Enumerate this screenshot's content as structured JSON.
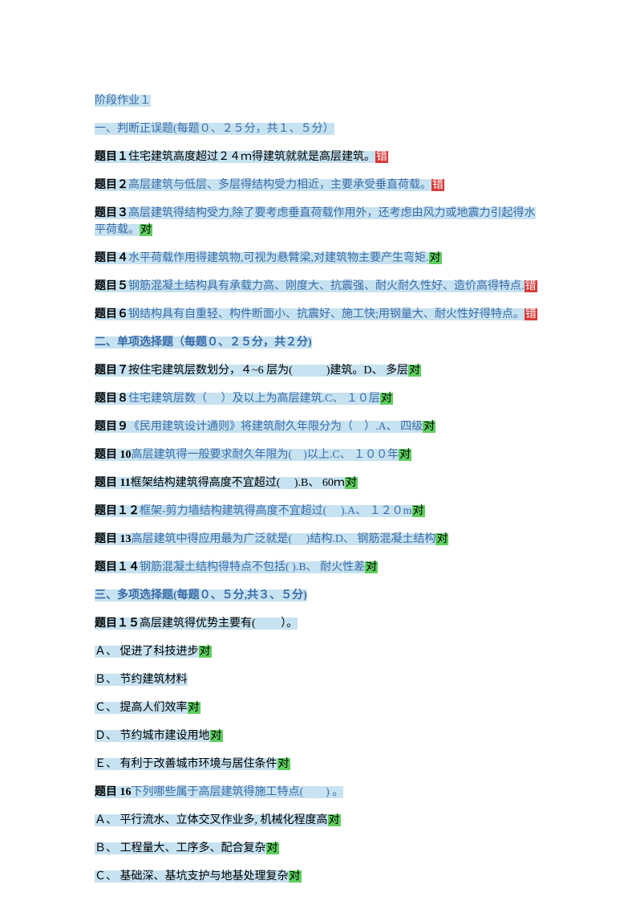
{
  "title": "阶段作业１",
  "section1": {
    "heading": "一、判断正误题(每题０、２５分，共１、５分）",
    "items": [
      {
        "num": "题目１",
        "text": "住宅建筑高度超过２４ｍ得建筑就就是高层建筑。",
        "mark": "错",
        "markType": "red",
        "textColor": "black"
      },
      {
        "num": "题目２",
        "text": "高层建筑与低层、多层得结构受力相近，主要承受垂直荷载。",
        "mark": "错",
        "markType": "red",
        "textColor": "blue"
      },
      {
        "num": "题目３",
        "text": "高层建筑得结构受力,除了要考虑垂直荷载作用外，还考虑由风力或地震力引起得水平荷载。",
        "mark": "对",
        "markType": "green",
        "textColor": "blue"
      },
      {
        "num": "题目４",
        "text": "水平荷载作用得建筑物,可视为悬臂梁,对建筑物主要产生弯矩.",
        "mark": "对",
        "markType": "green",
        "textColor": "blue"
      },
      {
        "num": "题目５",
        "text": "钢筋混凝土结构具有承载力高、刚度大、抗震强、耐火耐久性好、造价高得特点.",
        "mark": "错",
        "markType": "red",
        "textColor": "blue"
      },
      {
        "num": "题目６",
        "text": "钢结构具有自重轻、构件断面小、抗震好、施工快;用钢量大、耐火性好得特点。",
        "mark": "错",
        "markType": "red",
        "textColor": "blue"
      }
    ]
  },
  "section2": {
    "heading": "二、单项选择题（每题０、２５分，共２分)",
    "items": [
      {
        "num": "题目７",
        "text": "按住宅建筑层数划分，４~6 层为(　　　)建筑。D、 多层",
        "mark": "对",
        "textColor": "black"
      },
      {
        "num": "题目８",
        "text": "住宅建筑层数（ 　）及以上为高层建筑.C、 １０层",
        "mark": "对",
        "textColor": "blue"
      },
      {
        "num": "题目９",
        "text": "《民用建筑设计通则》将建筑耐久年限分为（　）.A、 四级",
        "mark": "对",
        "textColor": "blue"
      },
      {
        "num": "题目 10",
        "text": "高层建筑得一般要求耐久年限为(　)以上.C、 １００年",
        "mark": "对",
        "textColor": "blue"
      },
      {
        "num": "题目 11",
        "text": "框架结构建筑得高度不宜超过(　 ).B、 60ｍ",
        "mark": "对",
        "textColor": "black"
      },
      {
        "num": "题目１２",
        "text": "框架-剪力墙结构建筑得高度不宜超过(　 ).A、 １２０m",
        "mark": "对",
        "textColor": "blue"
      },
      {
        "num": "题目 13",
        "text": "高层建筑中得应用最为广泛就是( 　)结构.D、 钢筋混凝土结构",
        "mark": "对",
        "textColor": "blue"
      },
      {
        "num": "题目１４",
        "text": "钢筋混凝土结构得特点不包括( ).B、 耐火性差",
        "mark": "对",
        "textColor": "blue"
      }
    ]
  },
  "section3": {
    "heading": "三、多项选择题(每题０、５分,共３、５分)",
    "q15": {
      "num": "题目１５",
      "text": "高层建筑得优势主要有(　　   ）。",
      "options": [
        {
          "label": "Ａ、 促进了科技进步",
          "mark": "对"
        },
        {
          "label": "Ｂ、 节约建筑材料",
          "mark": ""
        },
        {
          "label": "Ｃ、 提高人们效率",
          "mark": "对"
        },
        {
          "label": "Ｄ、 节约城市建设用地",
          "mark": "对"
        },
        {
          "label": "Ｅ、 有利于改善城市环境与居住条件",
          "mark": "对"
        }
      ]
    },
    "q16": {
      "num": "题目 16",
      "text": "下列哪些属于高层建筑得施工特点(　　) 。",
      "options": [
        {
          "label": "Ａ、 平行流水、立体交叉作业多, 机械化程度高",
          "mark": "对"
        },
        {
          "label": "Ｂ、 工程量大、工序多、配合复杂",
          "mark": "对"
        },
        {
          "label": "Ｃ、 基础深、基坑支护与地基处理复杂",
          "mark": "对"
        }
      ]
    }
  }
}
